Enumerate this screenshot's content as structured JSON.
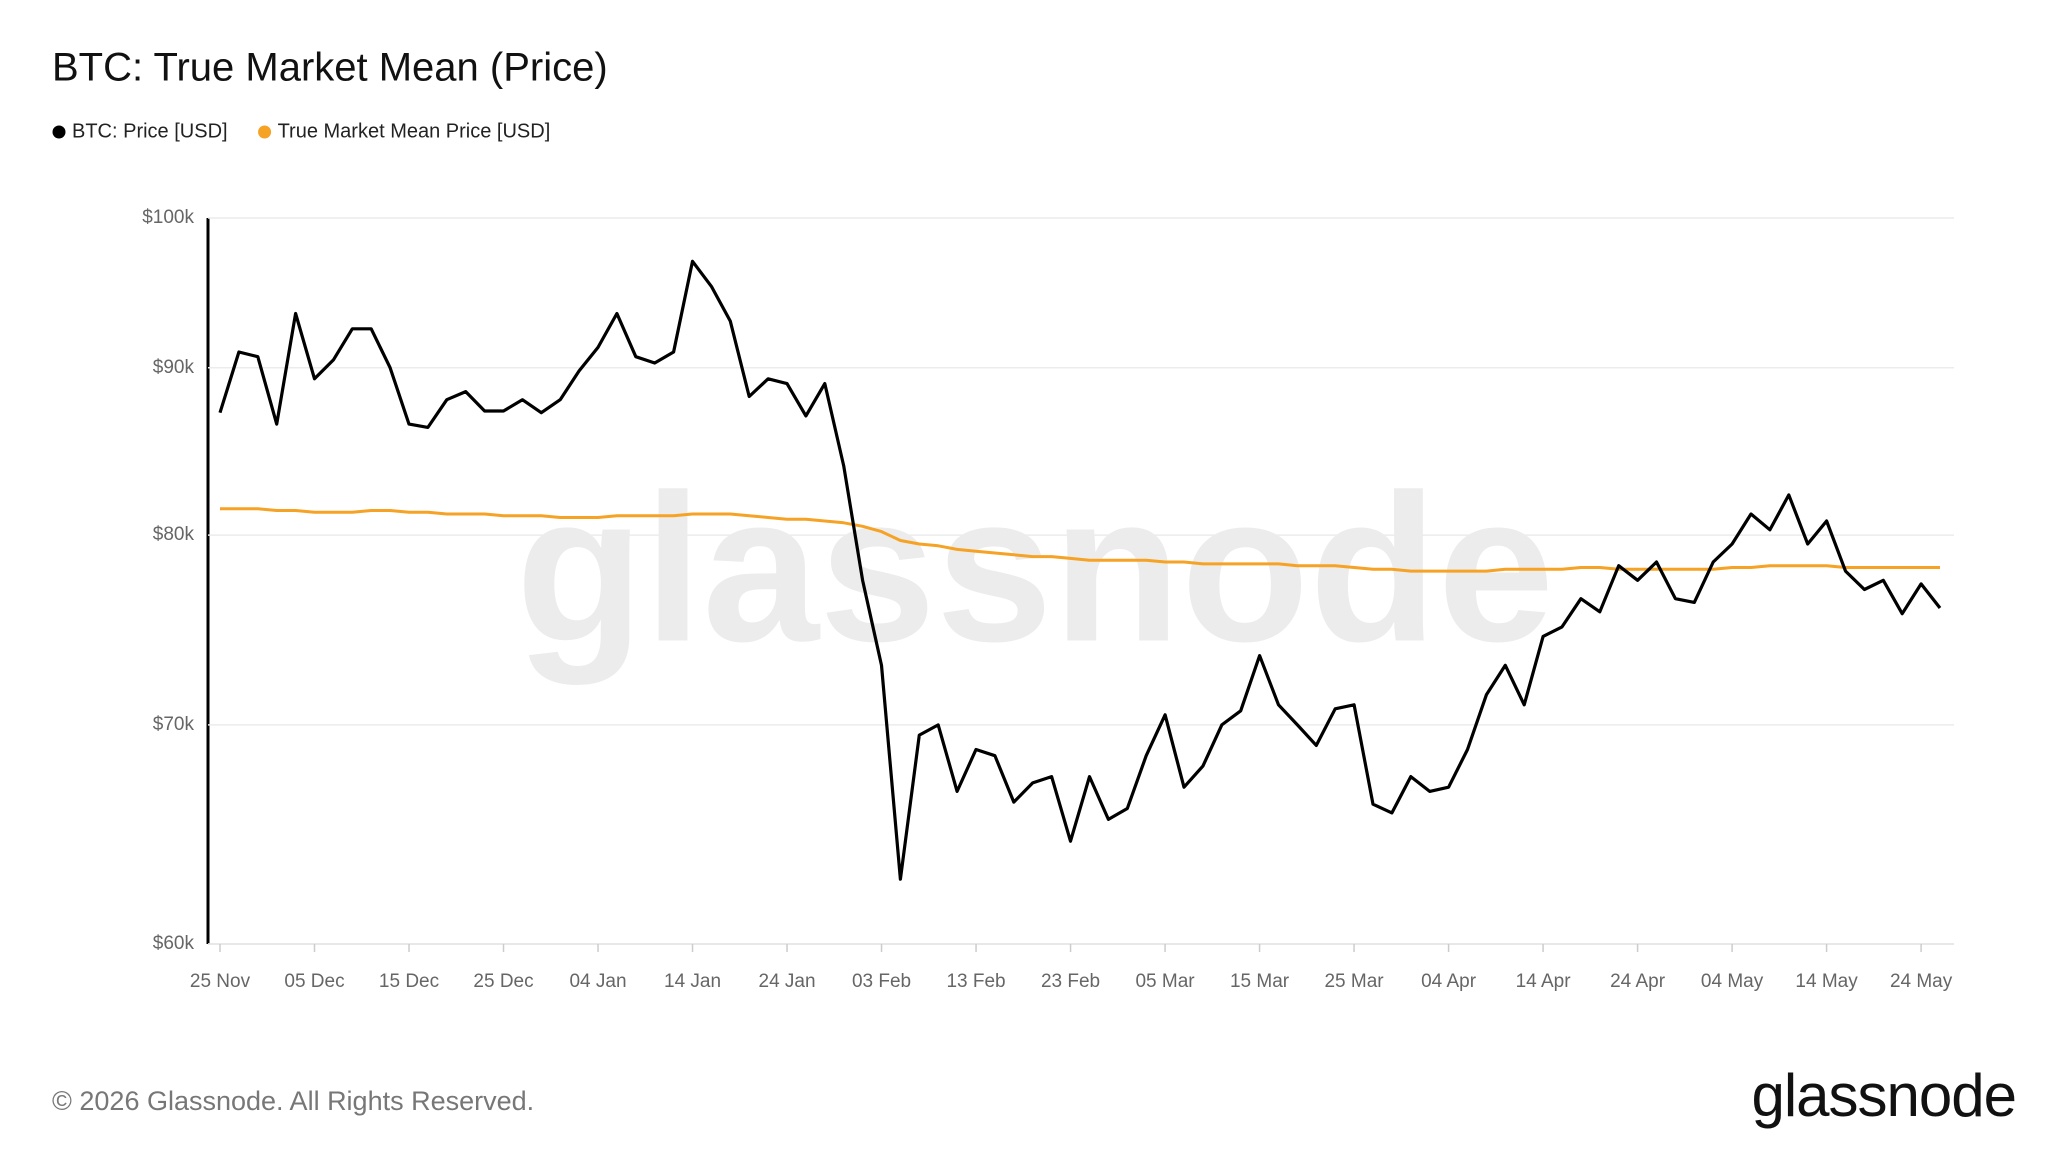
{
  "chart_data": {
    "type": "line",
    "title": "BTC: True Market Mean (Price)",
    "categories": [
      "25 Nov",
      null,
      null,
      null,
      null,
      "05 Dec",
      null,
      null,
      null,
      null,
      "15 Dec",
      null,
      null,
      null,
      null,
      "25 Dec",
      null,
      null,
      null,
      null,
      "04 Jan",
      null,
      null,
      null,
      null,
      "14 Jan",
      null,
      null,
      null,
      null,
      "24 Jan",
      null,
      null,
      null,
      null,
      "03 Feb",
      null,
      null,
      null,
      null,
      "13 Feb",
      null,
      null,
      null,
      null,
      "23 Feb",
      null,
      null,
      null,
      null,
      "05 Mar",
      null,
      null,
      null,
      null,
      "15 Mar",
      null,
      null,
      null,
      null,
      "25 Mar",
      null,
      null,
      null,
      null,
      "04 Apr",
      null,
      null,
      null,
      null,
      "14 Apr",
      null,
      null,
      null,
      null,
      "24 Apr",
      null,
      null,
      null,
      null,
      "04 May",
      null,
      null,
      null,
      null,
      "14 May",
      null,
      null,
      null,
      null,
      "24 May",
      null
    ],
    "series": [
      {
        "name": "BTC: Price [USD]",
        "color": "#000000",
        "values": [
          87200,
          91000,
          90700,
          86500,
          93500,
          89300,
          90500,
          92500,
          92500,
          90000,
          86500,
          86300,
          88000,
          88500,
          87300,
          87300,
          88000,
          87200,
          88000,
          89800,
          91300,
          93500,
          90700,
          90300,
          91000,
          97000,
          95300,
          93000,
          88200,
          89300,
          89000,
          87000,
          89000,
          84000,
          77500,
          73000,
          62800,
          69500,
          70000,
          66800,
          68800,
          68500,
          66300,
          67200,
          67500,
          64500,
          67500,
          65500,
          66000,
          68500,
          70500,
          67000,
          68000,
          70000,
          70700,
          73500,
          71000,
          70000,
          69000,
          70800,
          71000,
          66200,
          65800,
          67500,
          66800,
          67000,
          68800,
          71500,
          73000,
          71000,
          74500,
          75000,
          76500,
          75800,
          78300,
          77500,
          78500,
          76500,
          76300,
          78500,
          79500,
          81200,
          80300,
          82300,
          79500,
          80800,
          78000,
          77000,
          77500,
          75700,
          77300,
          76000
        ]
      },
      {
        "name": "True Market Mean Price [USD]",
        "color": "#f5a225",
        "values": [
          81500,
          81500,
          81500,
          81400,
          81400,
          81300,
          81300,
          81300,
          81400,
          81400,
          81300,
          81300,
          81200,
          81200,
          81200,
          81100,
          81100,
          81100,
          81000,
          81000,
          81000,
          81100,
          81100,
          81100,
          81100,
          81200,
          81200,
          81200,
          81100,
          81000,
          80900,
          80900,
          80800,
          80700,
          80500,
          80200,
          79700,
          79500,
          79400,
          79200,
          79100,
          79000,
          78900,
          78800,
          78800,
          78700,
          78600,
          78600,
          78600,
          78600,
          78500,
          78500,
          78400,
          78400,
          78400,
          78400,
          78400,
          78300,
          78300,
          78300,
          78200,
          78100,
          78100,
          78000,
          78000,
          78000,
          78000,
          78000,
          78100,
          78100,
          78100,
          78100,
          78200,
          78200,
          78100,
          78100,
          78100,
          78100,
          78100,
          78100,
          78200,
          78200,
          78300,
          78300,
          78300,
          78300,
          78200,
          78200,
          78200,
          78200,
          78200,
          78200
        ]
      }
    ],
    "ylim": [
      60000,
      100000
    ],
    "yticks": [
      {
        "value": 60000,
        "label": "$60k"
      },
      {
        "value": 70000,
        "label": "$70k"
      },
      {
        "value": 80000,
        "label": "$80k"
      },
      {
        "value": 90000,
        "label": "$90k"
      },
      {
        "value": 100000,
        "label": "$100k"
      }
    ],
    "log_y": true,
    "grid": true,
    "legend": "top-left"
  },
  "watermark": "glassnode",
  "footer": "© 2026 Glassnode. All Rights Reserved.",
  "logo": "glassnode"
}
